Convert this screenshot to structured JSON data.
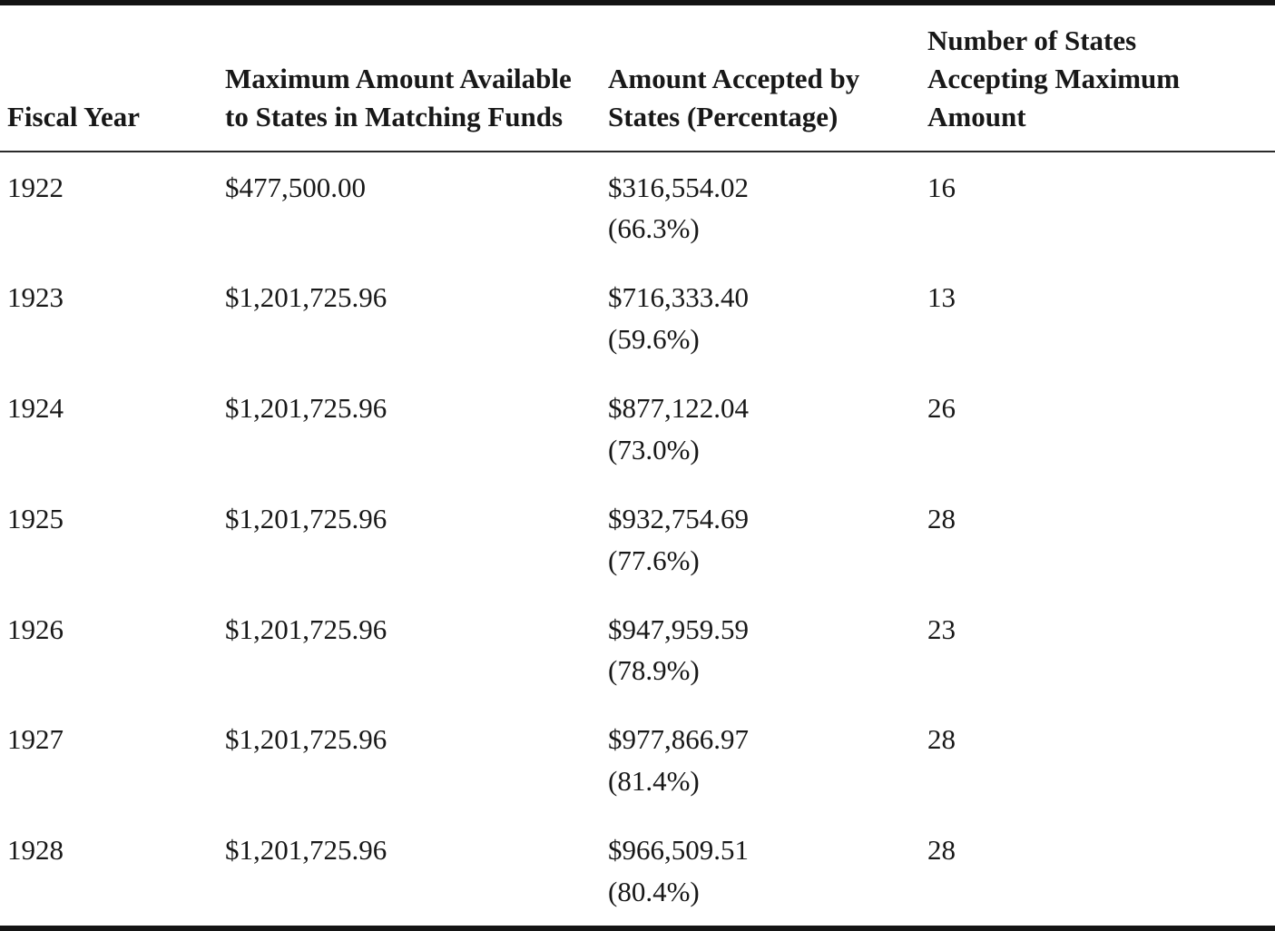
{
  "table": {
    "headers": [
      "Fiscal Year",
      "Maximum Amount Available to States in Matching Funds",
      "Amount Accepted by States (Percentage)",
      "Number of States Accepting Maximum Amount"
    ],
    "rows": [
      {
        "year": "1922",
        "max_amount": "$477,500.00",
        "accepted_amount": "$316,554.02",
        "accepted_pct": "(66.3%)",
        "states_accepting": "16"
      },
      {
        "year": "1923",
        "max_amount": "$1,201,725.96",
        "accepted_amount": "$716,333.40",
        "accepted_pct": "(59.6%)",
        "states_accepting": "13"
      },
      {
        "year": "1924",
        "max_amount": "$1,201,725.96",
        "accepted_amount": "$877,122.04",
        "accepted_pct": "(73.0%)",
        "states_accepting": "26"
      },
      {
        "year": "1925",
        "max_amount": "$1,201,725.96",
        "accepted_amount": "$932,754.69",
        "accepted_pct": "(77.6%)",
        "states_accepting": "28"
      },
      {
        "year": "1926",
        "max_amount": "$1,201,725.96",
        "accepted_amount": "$947,959.59",
        "accepted_pct": "(78.9%)",
        "states_accepting": "23"
      },
      {
        "year": "1927",
        "max_amount": "$1,201,725.96",
        "accepted_amount": "$977,866.97",
        "accepted_pct": "(81.4%)",
        "states_accepting": "28"
      },
      {
        "year": "1928",
        "max_amount": "$1,201,725.96",
        "accepted_amount": "$966,509.51",
        "accepted_pct": "(80.4%)",
        "states_accepting": "28"
      }
    ]
  },
  "chart_data": {
    "type": "table",
    "title": "",
    "columns": [
      "Fiscal Year",
      "Maximum Amount Available to States in Matching Funds",
      "Amount Accepted by States (Percentage)",
      "Number of States Accepting Maximum Amount"
    ],
    "rows": [
      [
        "1922",
        "$477,500.00",
        "$316,554.02 (66.3%)",
        "16"
      ],
      [
        "1923",
        "$1,201,725.96",
        "$716,333.40 (59.6%)",
        "13"
      ],
      [
        "1924",
        "$1,201,725.96",
        "$877,122.04 (73.0%)",
        "26"
      ],
      [
        "1925",
        "$1,201,725.96",
        "$932,754.69 (77.6%)",
        "28"
      ],
      [
        "1926",
        "$1,201,725.96",
        "$947,959.59 (78.9%)",
        "23"
      ],
      [
        "1927",
        "$1,201,725.96",
        "$977,866.97 (81.4%)",
        "28"
      ],
      [
        "1928",
        "$1,201,725.96",
        "$966,509.51 (80.4%)",
        "28"
      ]
    ]
  }
}
